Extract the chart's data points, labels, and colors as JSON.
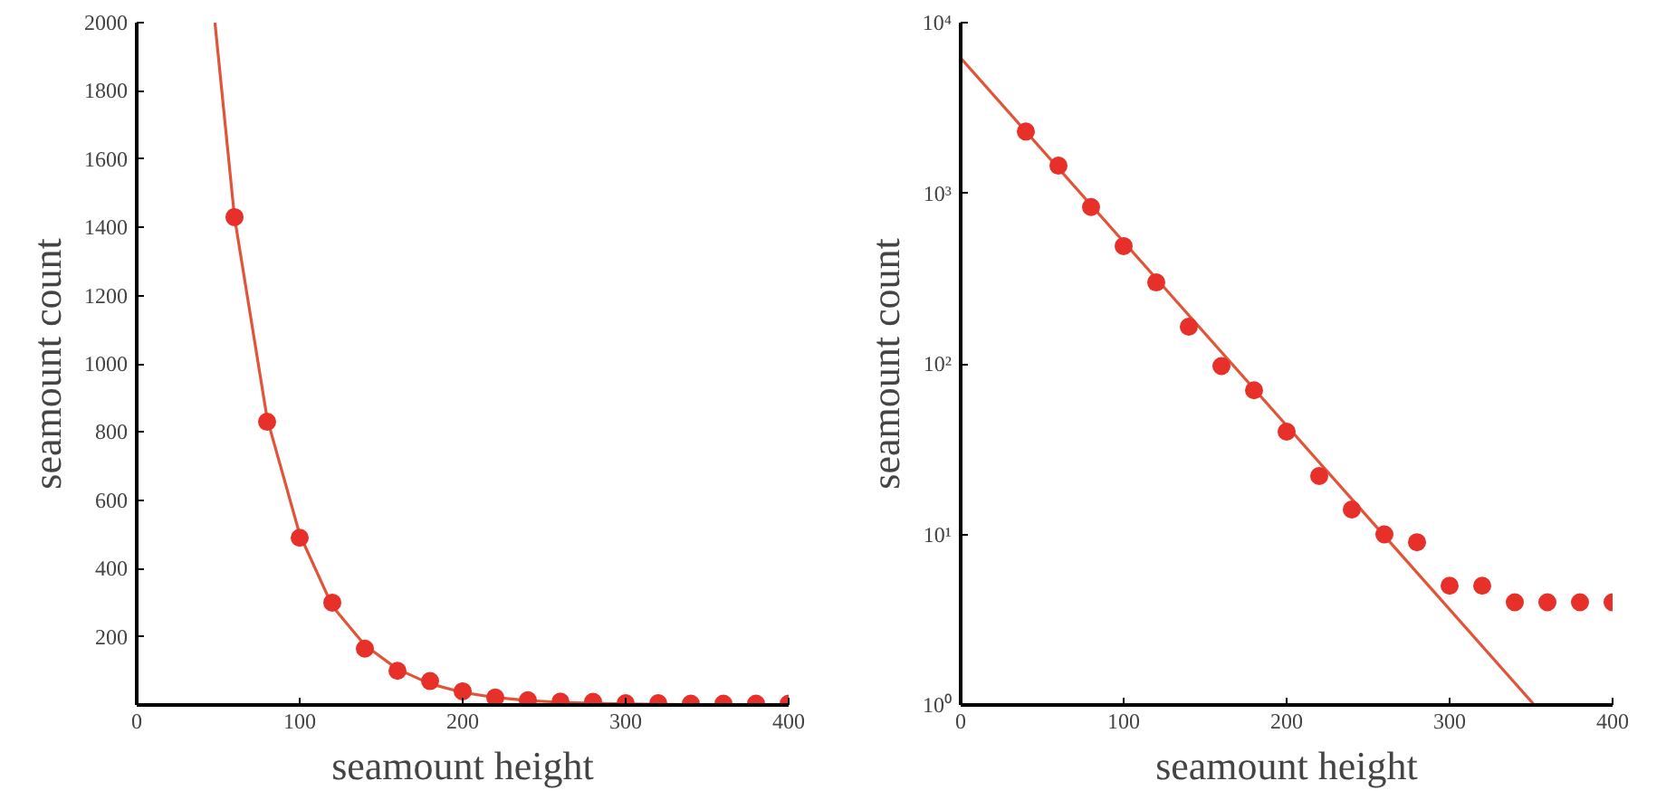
{
  "chart_data": [
    {
      "type": "scatter",
      "xlabel": "seamount height",
      "ylabel": "seamount count",
      "xlim": [
        0,
        400
      ],
      "ylim": [
        0,
        2000
      ],
      "xticks": [
        0,
        100,
        200,
        300,
        400
      ],
      "yticks": [
        200,
        400,
        600,
        800,
        1000,
        1200,
        1400,
        1600,
        1800,
        2000
      ],
      "marker": "circle",
      "series": [
        {
          "type": "line",
          "marker": "none",
          "color": "#e0553a",
          "x": [
            48,
            60,
            80,
            100,
            120,
            140,
            160,
            180,
            200,
            220,
            240,
            260,
            280,
            300,
            340,
            400
          ],
          "values": [
            2000,
            1430,
            840,
            500,
            290,
            175,
            105,
            62,
            37,
            22,
            13,
            8,
            5,
            3,
            1,
            0
          ]
        },
        {
          "color": "#e8302a",
          "x": [
            60,
            80,
            100,
            120,
            140,
            160,
            180,
            200,
            220,
            240,
            260,
            280,
            300,
            320,
            340,
            360,
            380,
            400
          ],
          "values": [
            1430,
            830,
            490,
            300,
            165,
            100,
            70,
            40,
            22,
            14,
            10,
            9,
            5,
            5,
            4,
            4,
            4,
            4
          ]
        }
      ]
    },
    {
      "type": "scatter",
      "xlabel": "seamount height",
      "ylabel": "seamount count",
      "log": "y",
      "xlim": [
        0,
        400
      ],
      "ylim": [
        1,
        10000
      ],
      "xticks": [
        0,
        100,
        200,
        300,
        400
      ],
      "yticks": [
        {
          "value": 1,
          "label": "10⁰"
        },
        {
          "value": 10,
          "label": "10¹"
        },
        {
          "value": 100,
          "label": "10²"
        },
        {
          "value": 1000,
          "label": "10³"
        },
        {
          "value": 10000,
          "label": "10⁴"
        }
      ],
      "marker": "circle",
      "series": [
        {
          "type": "line",
          "marker": "none",
          "color": "#e0553a",
          "x": [
            0,
            352
          ],
          "values": [
            6200,
            1
          ]
        },
        {
          "color": "#e8302a",
          "x": [
            40,
            60,
            80,
            100,
            120,
            140,
            160,
            180,
            200,
            220,
            240,
            260,
            280,
            300,
            320,
            340,
            360,
            380,
            400
          ],
          "values": [
            2300,
            1450,
            830,
            490,
            300,
            165,
            97,
            70,
            40,
            22,
            14,
            10,
            9,
            5,
            5,
            4,
            4,
            4,
            4
          ]
        }
      ]
    }
  ]
}
